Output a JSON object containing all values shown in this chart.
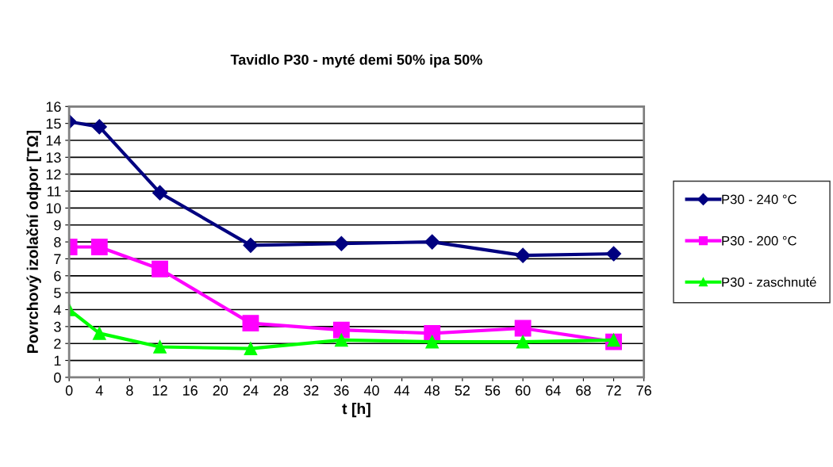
{
  "chart_data": {
    "type": "line",
    "title": "Tavidlo P30 - myté demi 50% ipa 50%",
    "xlabel": "t [h]",
    "ylabel": "Povrchový izolační odpor [TΩ]",
    "x": [
      0,
      4,
      12,
      24,
      36,
      48,
      60,
      72
    ],
    "series": [
      {
        "name": "P30 - 240 °C",
        "color": "#000080",
        "marker": "diamond",
        "values": [
          15.1,
          14.8,
          10.9,
          7.8,
          7.9,
          8.0,
          7.2,
          7.3
        ]
      },
      {
        "name": "P30 - 200 °C",
        "color": "#ff00ff",
        "marker": "square",
        "values": [
          7.7,
          7.7,
          6.4,
          3.2,
          2.8,
          2.6,
          2.9,
          2.1
        ]
      },
      {
        "name": "P30 - zaschnuté",
        "color": "#00ff00",
        "marker": "triangle",
        "values": [
          4.0,
          2.6,
          1.8,
          1.7,
          2.2,
          2.1,
          2.1,
          2.2
        ]
      }
    ],
    "xlim": [
      0,
      76
    ],
    "xticks": [
      0,
      4,
      8,
      12,
      16,
      20,
      24,
      28,
      32,
      36,
      40,
      44,
      48,
      52,
      56,
      60,
      64,
      68,
      72,
      76
    ],
    "ylim": [
      0,
      16
    ],
    "yticks": [
      0,
      1,
      2,
      3,
      4,
      5,
      6,
      7,
      8,
      9,
      10,
      11,
      12,
      13,
      14,
      15,
      16
    ],
    "grid": "y",
    "legend": "right",
    "line_style": "solid"
  }
}
